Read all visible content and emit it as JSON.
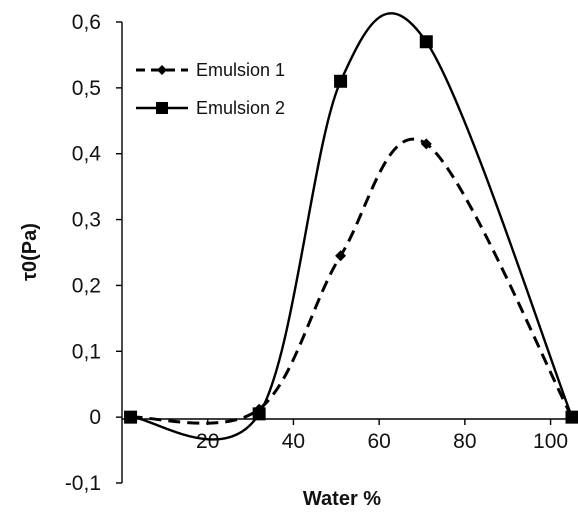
{
  "chart_data": {
    "type": "line",
    "title": "",
    "xlabel": "Water %",
    "ylabel": "τ0(Pa)",
    "xlim": [
      0,
      105
    ],
    "ylim": [
      -0.1,
      0.6
    ],
    "x_ticks": [
      "20",
      "40",
      "60",
      "80",
      "100"
    ],
    "x_tick_values": [
      20,
      40,
      60,
      80,
      100
    ],
    "y_ticks": [
      "-0,1",
      "0",
      "0,1",
      "0,2",
      "0,3",
      "0,4",
      "0,5",
      "0,6"
    ],
    "y_tick_values": [
      -0.1,
      0,
      0.1,
      0.2,
      0.3,
      0.4,
      0.5,
      0.6
    ],
    "grid": false,
    "legend_position": "top-left",
    "series": [
      {
        "name": "Emulsion 1",
        "marker": "diamond",
        "line_style": "dashed",
        "color": "#000000",
        "x": [
          2,
          32,
          51,
          71,
          105
        ],
        "y": [
          0,
          0.012,
          0.245,
          0.415,
          0
        ]
      },
      {
        "name": "Emulsion 2",
        "marker": "square",
        "line_style": "solid",
        "color": "#000000",
        "x": [
          2,
          32,
          51,
          71,
          105
        ],
        "y": [
          0,
          0.005,
          0.51,
          0.57,
          0
        ]
      }
    ]
  }
}
